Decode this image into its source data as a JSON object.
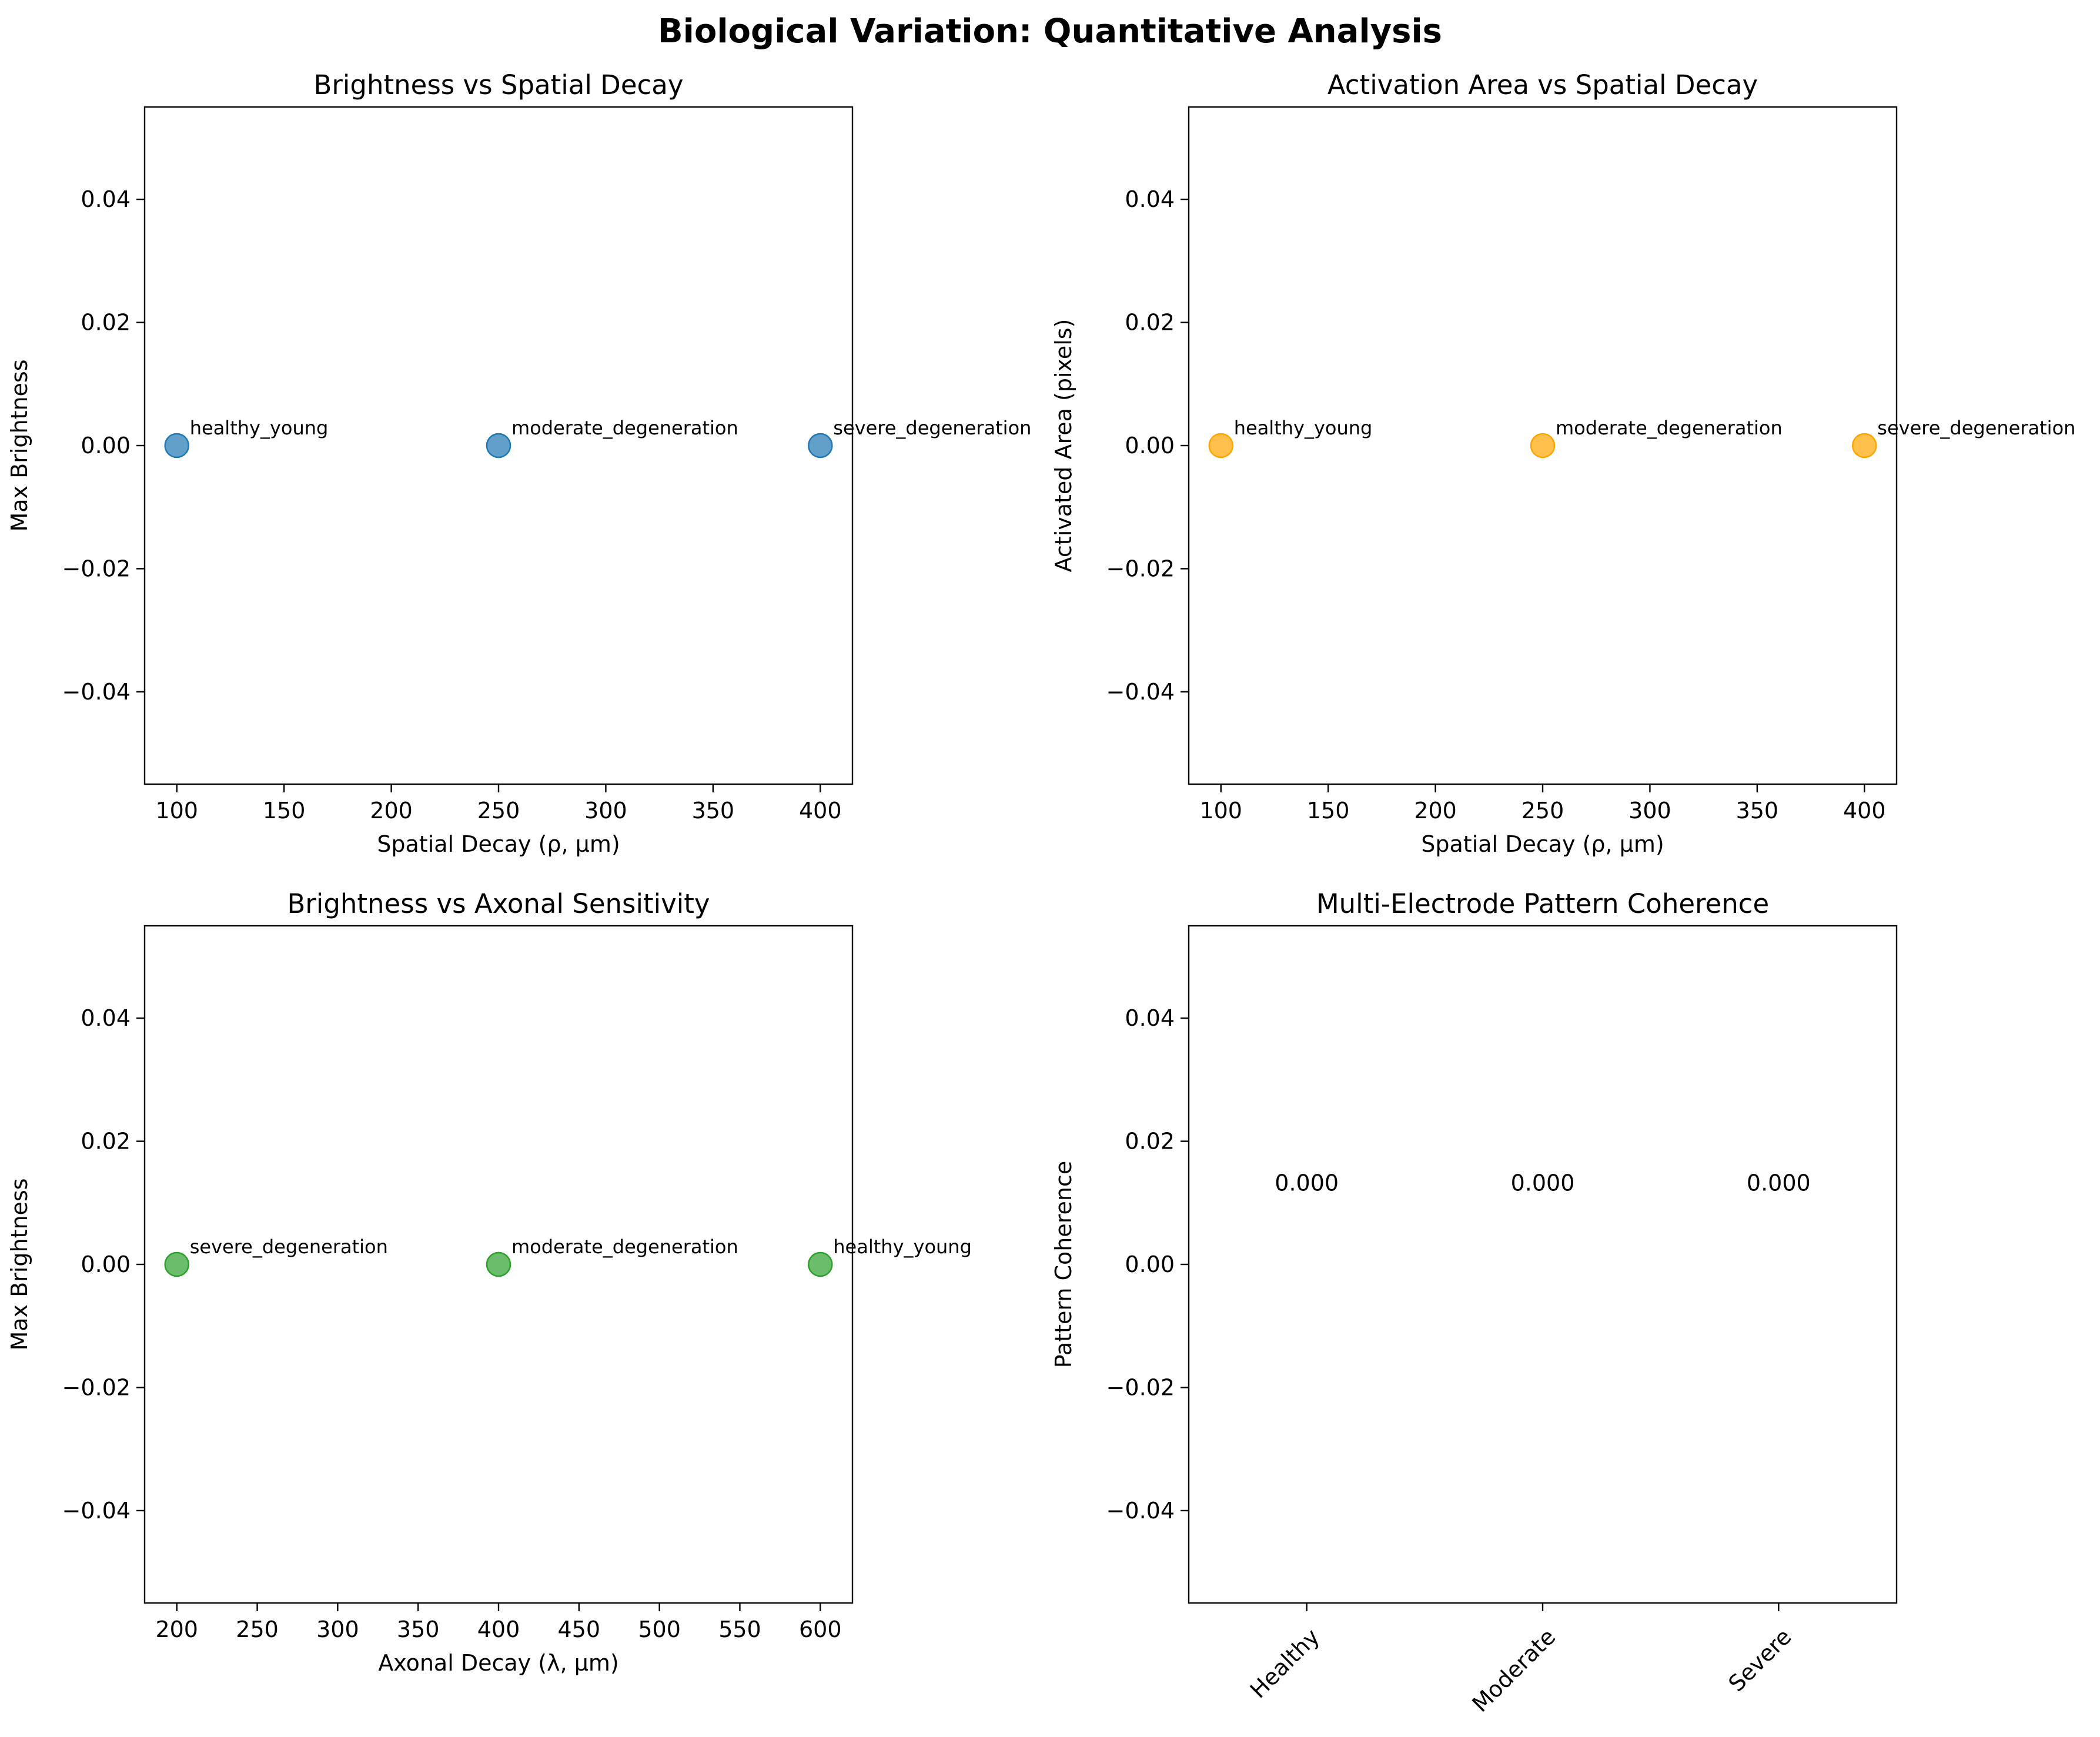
{
  "figure": {
    "title": "Biological Variation: Quantitative Analysis"
  },
  "chart_data": [
    {
      "type": "scatter",
      "title": "Brightness vs Spatial Decay",
      "xlabel": "Spatial Decay (ρ, µm)",
      "ylabel": "Max Brightness",
      "color": "#1f77b4",
      "xlim": [
        85,
        415
      ],
      "ylim": [
        -0.055,
        0.055
      ],
      "xticks": [
        100,
        150,
        200,
        250,
        300,
        350,
        400
      ],
      "xtick_labels": [
        "100",
        "150",
        "200",
        "250",
        "300",
        "350",
        "400"
      ],
      "yticks": [
        -0.04,
        -0.02,
        0.0,
        0.02,
        0.04
      ],
      "ytick_labels": [
        "−0.04",
        "−0.02",
        "0.00",
        "0.02",
        "0.04"
      ],
      "grid": false,
      "points": [
        {
          "x": 100,
          "y": 0.0,
          "label": "healthy_young"
        },
        {
          "x": 250,
          "y": 0.0,
          "label": "moderate_degeneration"
        },
        {
          "x": 400,
          "y": 0.0,
          "label": "severe_degeneration"
        }
      ]
    },
    {
      "type": "scatter",
      "title": "Activation Area vs Spatial Decay",
      "xlabel": "Spatial Decay (ρ, µm)",
      "ylabel": "Activated Area (pixels)",
      "color": "#ffa500",
      "xlim": [
        85,
        415
      ],
      "ylim": [
        -0.055,
        0.055
      ],
      "xticks": [
        100,
        150,
        200,
        250,
        300,
        350,
        400
      ],
      "xtick_labels": [
        "100",
        "150",
        "200",
        "250",
        "300",
        "350",
        "400"
      ],
      "yticks": [
        -0.04,
        -0.02,
        0.0,
        0.02,
        0.04
      ],
      "ytick_labels": [
        "−0.04",
        "−0.02",
        "0.00",
        "0.02",
        "0.04"
      ],
      "grid": false,
      "points": [
        {
          "x": 100,
          "y": 0.0,
          "label": "healthy_young"
        },
        {
          "x": 250,
          "y": 0.0,
          "label": "moderate_degeneration"
        },
        {
          "x": 400,
          "y": 0.0,
          "label": "severe_degeneration"
        }
      ]
    },
    {
      "type": "scatter",
      "title": "Brightness vs Axonal Sensitivity",
      "xlabel": "Axonal Decay (λ, µm)",
      "ylabel": "Max Brightness",
      "color": "#2ca02c",
      "xlim": [
        180,
        620
      ],
      "ylim": [
        -0.055,
        0.055
      ],
      "xticks": [
        200,
        250,
        300,
        350,
        400,
        450,
        500,
        550,
        600
      ],
      "xtick_labels": [
        "200",
        "250",
        "300",
        "350",
        "400",
        "450",
        "500",
        "550",
        "600"
      ],
      "yticks": [
        -0.04,
        -0.02,
        0.0,
        0.02,
        0.04
      ],
      "ytick_labels": [
        "−0.04",
        "−0.02",
        "0.00",
        "0.02",
        "0.04"
      ],
      "grid": false,
      "points": [
        {
          "x": 200,
          "y": 0.0,
          "label": "severe_degeneration"
        },
        {
          "x": 400,
          "y": 0.0,
          "label": "moderate_degeneration"
        },
        {
          "x": 600,
          "y": 0.0,
          "label": "healthy_young"
        }
      ]
    },
    {
      "type": "bar",
      "title": "Multi-Electrode Pattern Coherence",
      "xlabel": "",
      "ylabel": "Pattern Coherence",
      "categories": [
        "Healthy",
        "Moderate",
        "Severe"
      ],
      "values": [
        0.0,
        0.0,
        0.0
      ],
      "value_labels": [
        "0.000",
        "0.000",
        "0.000"
      ],
      "xlim": [
        -0.5,
        2.5
      ],
      "ylim": [
        -0.055,
        0.055
      ],
      "yticks": [
        -0.04,
        -0.02,
        0.0,
        0.02,
        0.04
      ],
      "ytick_labels": [
        "−0.04",
        "−0.02",
        "0.00",
        "0.02",
        "0.04"
      ],
      "grid": false,
      "xtick_rotation": 45
    }
  ]
}
